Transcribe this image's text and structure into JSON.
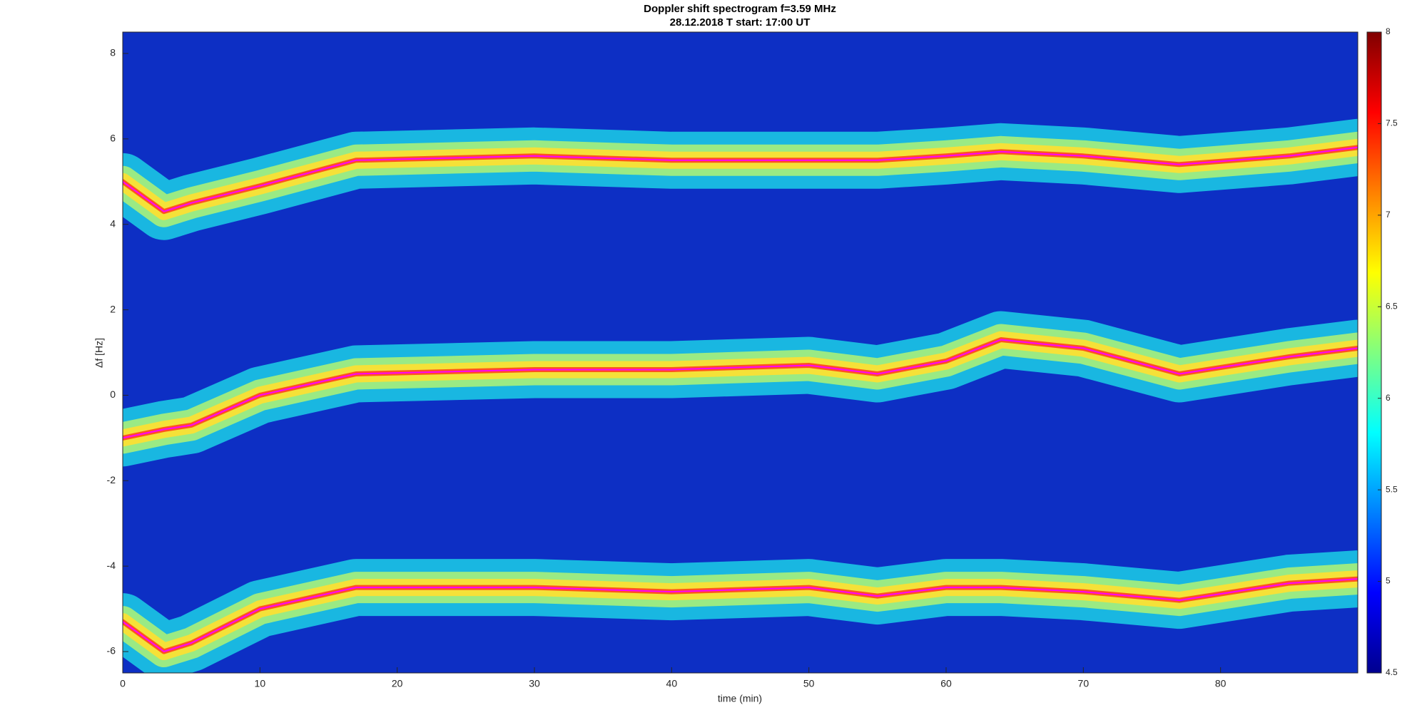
{
  "chart_data": {
    "type": "spectrogram",
    "title": "Doppler shift spectrogram f=3.59 MHz",
    "subtitle": "28.12.2018   T start: 17:00 UT",
    "x_label": "time (min)",
    "y_label": "Δf [Hz]",
    "xlim": [
      0,
      90
    ],
    "xticks": [
      0,
      10,
      20,
      30,
      40,
      50,
      60,
      70,
      80
    ],
    "ylim": [
      -6.5,
      8.5
    ],
    "yticks": [
      -6,
      -4,
      -2,
      0,
      2,
      4,
      6,
      8
    ],
    "colormap": "jet",
    "clim": [
      4.5,
      8
    ],
    "cticks": [
      4.5,
      5,
      5.5,
      6,
      6.5,
      7,
      7.5,
      8
    ],
    "x": [
      0,
      3,
      5,
      10,
      17,
      30,
      40,
      50,
      55,
      60,
      64,
      70,
      77,
      85,
      90
    ],
    "series": [
      {
        "color": "#ff00ff",
        "values": [
          5.0,
          4.3,
          4.5,
          4.9,
          5.5,
          5.6,
          5.5,
          5.5,
          5.5,
          5.6,
          5.7,
          5.6,
          5.4,
          5.6,
          5.8
        ]
      },
      {
        "color": "#ff00ff",
        "values": [
          -1.0,
          -0.8,
          -0.7,
          0.0,
          0.5,
          0.6,
          0.6,
          0.7,
          0.5,
          0.8,
          1.3,
          1.1,
          0.5,
          0.9,
          1.1
        ]
      },
      {
        "color": "#ff00ff",
        "values": [
          -5.3,
          -6.0,
          -5.8,
          -5.0,
          -4.5,
          -4.5,
          -4.6,
          -4.5,
          -4.7,
          -4.5,
          -4.5,
          -4.6,
          -4.8,
          -4.4,
          -4.3
        ]
      }
    ]
  }
}
